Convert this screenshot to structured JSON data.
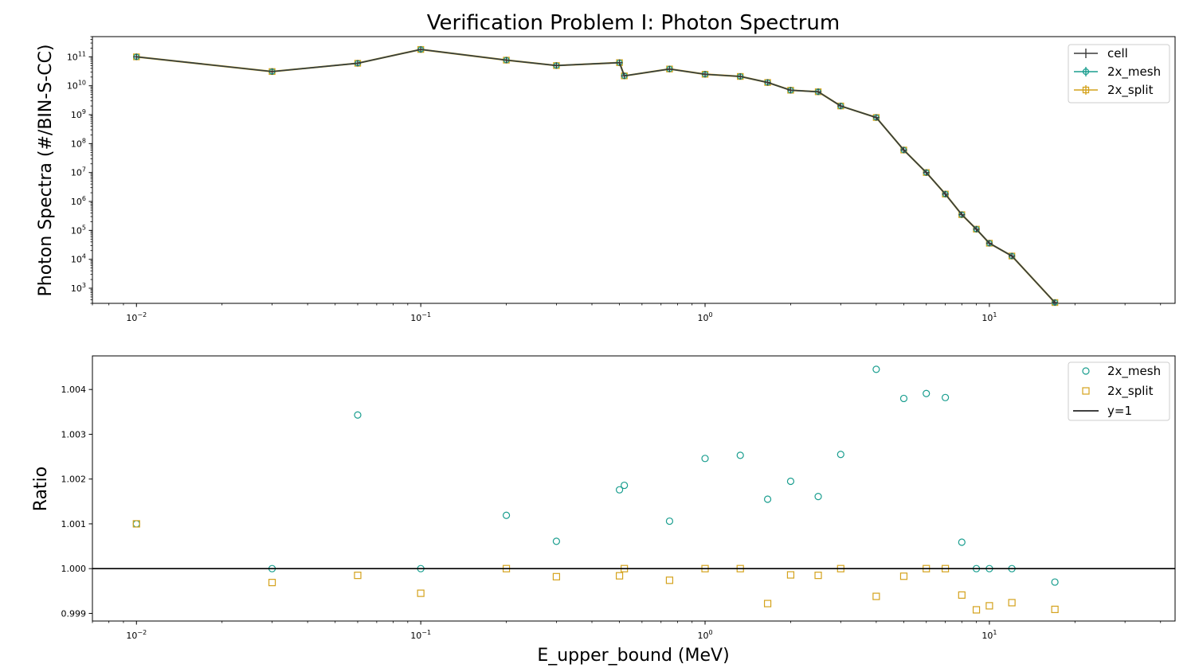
{
  "chart_data": [
    {
      "type": "line",
      "title": "Verification Problem I: Photon Spectrum",
      "xlabel": "",
      "ylabel": "Photon Spectra (#/BIN-S-CC)",
      "xscale": "log",
      "yscale": "log",
      "xlim": [
        0.007,
        45
      ],
      "ylim": [
        300,
        500000000000
      ],
      "x_ticks": [
        {
          "value": 0.01,
          "base": "10",
          "exp": "−2"
        },
        {
          "value": 0.1,
          "base": "10",
          "exp": "−1"
        },
        {
          "value": 1,
          "base": "10",
          "exp": "0"
        },
        {
          "value": 10,
          "base": "10",
          "exp": "1"
        }
      ],
      "y_ticks": [
        {
          "value": 1000,
          "base": "10",
          "exp": "3"
        },
        {
          "value": 10000,
          "base": "10",
          "exp": "4"
        },
        {
          "value": 100000,
          "base": "10",
          "exp": "5"
        },
        {
          "value": 1000000,
          "base": "10",
          "exp": "6"
        },
        {
          "value": 10000000,
          "base": "10",
          "exp": "7"
        },
        {
          "value": 100000000,
          "base": "10",
          "exp": "8"
        },
        {
          "value": 1000000000,
          "base": "10",
          "exp": "9"
        },
        {
          "value": 10000000000,
          "base": "10",
          "exp": "10"
        },
        {
          "value": 100000000000,
          "base": "10",
          "exp": "11"
        }
      ],
      "legend_position": "top-right",
      "grid": false,
      "x": [
        0.01,
        0.03,
        0.06,
        0.1,
        0.2,
        0.3,
        0.5,
        0.52,
        0.75,
        1.0,
        1.33,
        1.66,
        2.0,
        2.5,
        3.0,
        4.0,
        5.0,
        6.0,
        7.0,
        8.0,
        9.0,
        10.0,
        12.0,
        17.0
      ],
      "series": [
        {
          "name": "cell",
          "color": "#3a3a3a",
          "marker": "plus",
          "values": [
            100000000000.0,
            31000000000.0,
            60000000000.0,
            180000000000.0,
            77000000000.0,
            50000000000.0,
            63000000000.0,
            22000000000.0,
            38000000000.0,
            25000000000.0,
            21000000000.0,
            13000000000.0,
            7000000000.0,
            6200000000.0,
            2000000000.0,
            800000000.0,
            60000000.0,
            10000000.0,
            1800000.0,
            350000.0,
            110000.0,
            36000.0,
            13000.0,
            320
          ]
        },
        {
          "name": "2x_mesh",
          "color": "#1a9e8f",
          "marker": "circle",
          "values": [
            100000000000.0,
            31000000000.0,
            60000000000.0,
            180000000000.0,
            77000000000.0,
            50000000000.0,
            63000000000.0,
            22000000000.0,
            38000000000.0,
            25000000000.0,
            21000000000.0,
            13000000000.0,
            7000000000.0,
            6200000000.0,
            2000000000.0,
            800000000.0,
            60000000.0,
            10000000.0,
            1800000.0,
            350000.0,
            110000.0,
            36000.0,
            13000.0,
            320
          ]
        },
        {
          "name": "2x_split",
          "color": "#d4a21c",
          "marker": "square",
          "values": [
            100000000000.0,
            31000000000.0,
            60000000000.0,
            180000000000.0,
            77000000000.0,
            50000000000.0,
            63000000000.0,
            22000000000.0,
            38000000000.0,
            25000000000.0,
            21000000000.0,
            13000000000.0,
            7000000000.0,
            6200000000.0,
            2000000000.0,
            800000000.0,
            60000000.0,
            10000000.0,
            1800000.0,
            350000.0,
            110000.0,
            36000.0,
            13000.0,
            320
          ]
        }
      ]
    },
    {
      "type": "scatter",
      "title": "",
      "xlabel": "E_upper_bound (MeV)",
      "ylabel": "Ratio",
      "xscale": "log",
      "yscale": "linear",
      "xlim": [
        0.007,
        45
      ],
      "ylim": [
        0.99883,
        1.00475
      ],
      "x_ticks": [
        {
          "value": 0.01,
          "base": "10",
          "exp": "−2"
        },
        {
          "value": 0.1,
          "base": "10",
          "exp": "−1"
        },
        {
          "value": 1,
          "base": "10",
          "exp": "0"
        },
        {
          "value": 10,
          "base": "10",
          "exp": "1"
        }
      ],
      "y_ticks": [
        {
          "value": 0.999,
          "label": "0.999"
        },
        {
          "value": 1.0,
          "label": "1.000"
        },
        {
          "value": 1.001,
          "label": "1.001"
        },
        {
          "value": 1.002,
          "label": "1.002"
        },
        {
          "value": 1.003,
          "label": "1.003"
        },
        {
          "value": 1.004,
          "label": "1.004"
        }
      ],
      "legend_position": "top-right",
      "grid": false,
      "series": [
        {
          "name": "2x_mesh",
          "color": "#1a9e8f",
          "marker": "circle",
          "x": [
            0.01,
            0.03,
            0.06,
            0.1,
            0.2,
            0.3,
            0.5,
            0.52,
            0.75,
            1.0,
            1.33,
            1.66,
            2.0,
            2.5,
            3.0,
            4.0,
            5.0,
            6.0,
            7.0,
            8.0,
            9.0,
            10.0,
            12.0,
            17.0
          ],
          "values": [
            1.001,
            1.0,
            1.00343,
            1.0,
            1.00119,
            1.00061,
            1.00176,
            1.00186,
            1.00106,
            1.00246,
            1.00253,
            1.00155,
            1.00195,
            1.00161,
            1.00255,
            1.00445,
            1.0038,
            1.00391,
            1.00382,
            1.00059,
            1.0,
            1.0,
            1.0,
            0.9997
          ]
        },
        {
          "name": "2x_split",
          "color": "#d4a21c",
          "marker": "square",
          "x": [
            0.01,
            0.03,
            0.06,
            0.1,
            0.2,
            0.3,
            0.5,
            0.52,
            0.75,
            1.0,
            1.33,
            1.66,
            2.0,
            2.5,
            3.0,
            4.0,
            5.0,
            6.0,
            7.0,
            8.0,
            9.0,
            10.0,
            12.0,
            17.0
          ],
          "values": [
            1.001,
            0.99969,
            0.99985,
            0.99945,
            1.0,
            0.99982,
            0.99984,
            1.0,
            0.99974,
            1.0,
            1.0,
            0.99922,
            0.99986,
            0.99985,
            1.0,
            0.99938,
            0.99983,
            1.0,
            1.0,
            0.99941,
            0.99908,
            0.99917,
            0.99924,
            0.99909
          ]
        },
        {
          "name": "y=1",
          "color": "#000000",
          "marker": "line",
          "hline": 1.0
        }
      ]
    }
  ]
}
